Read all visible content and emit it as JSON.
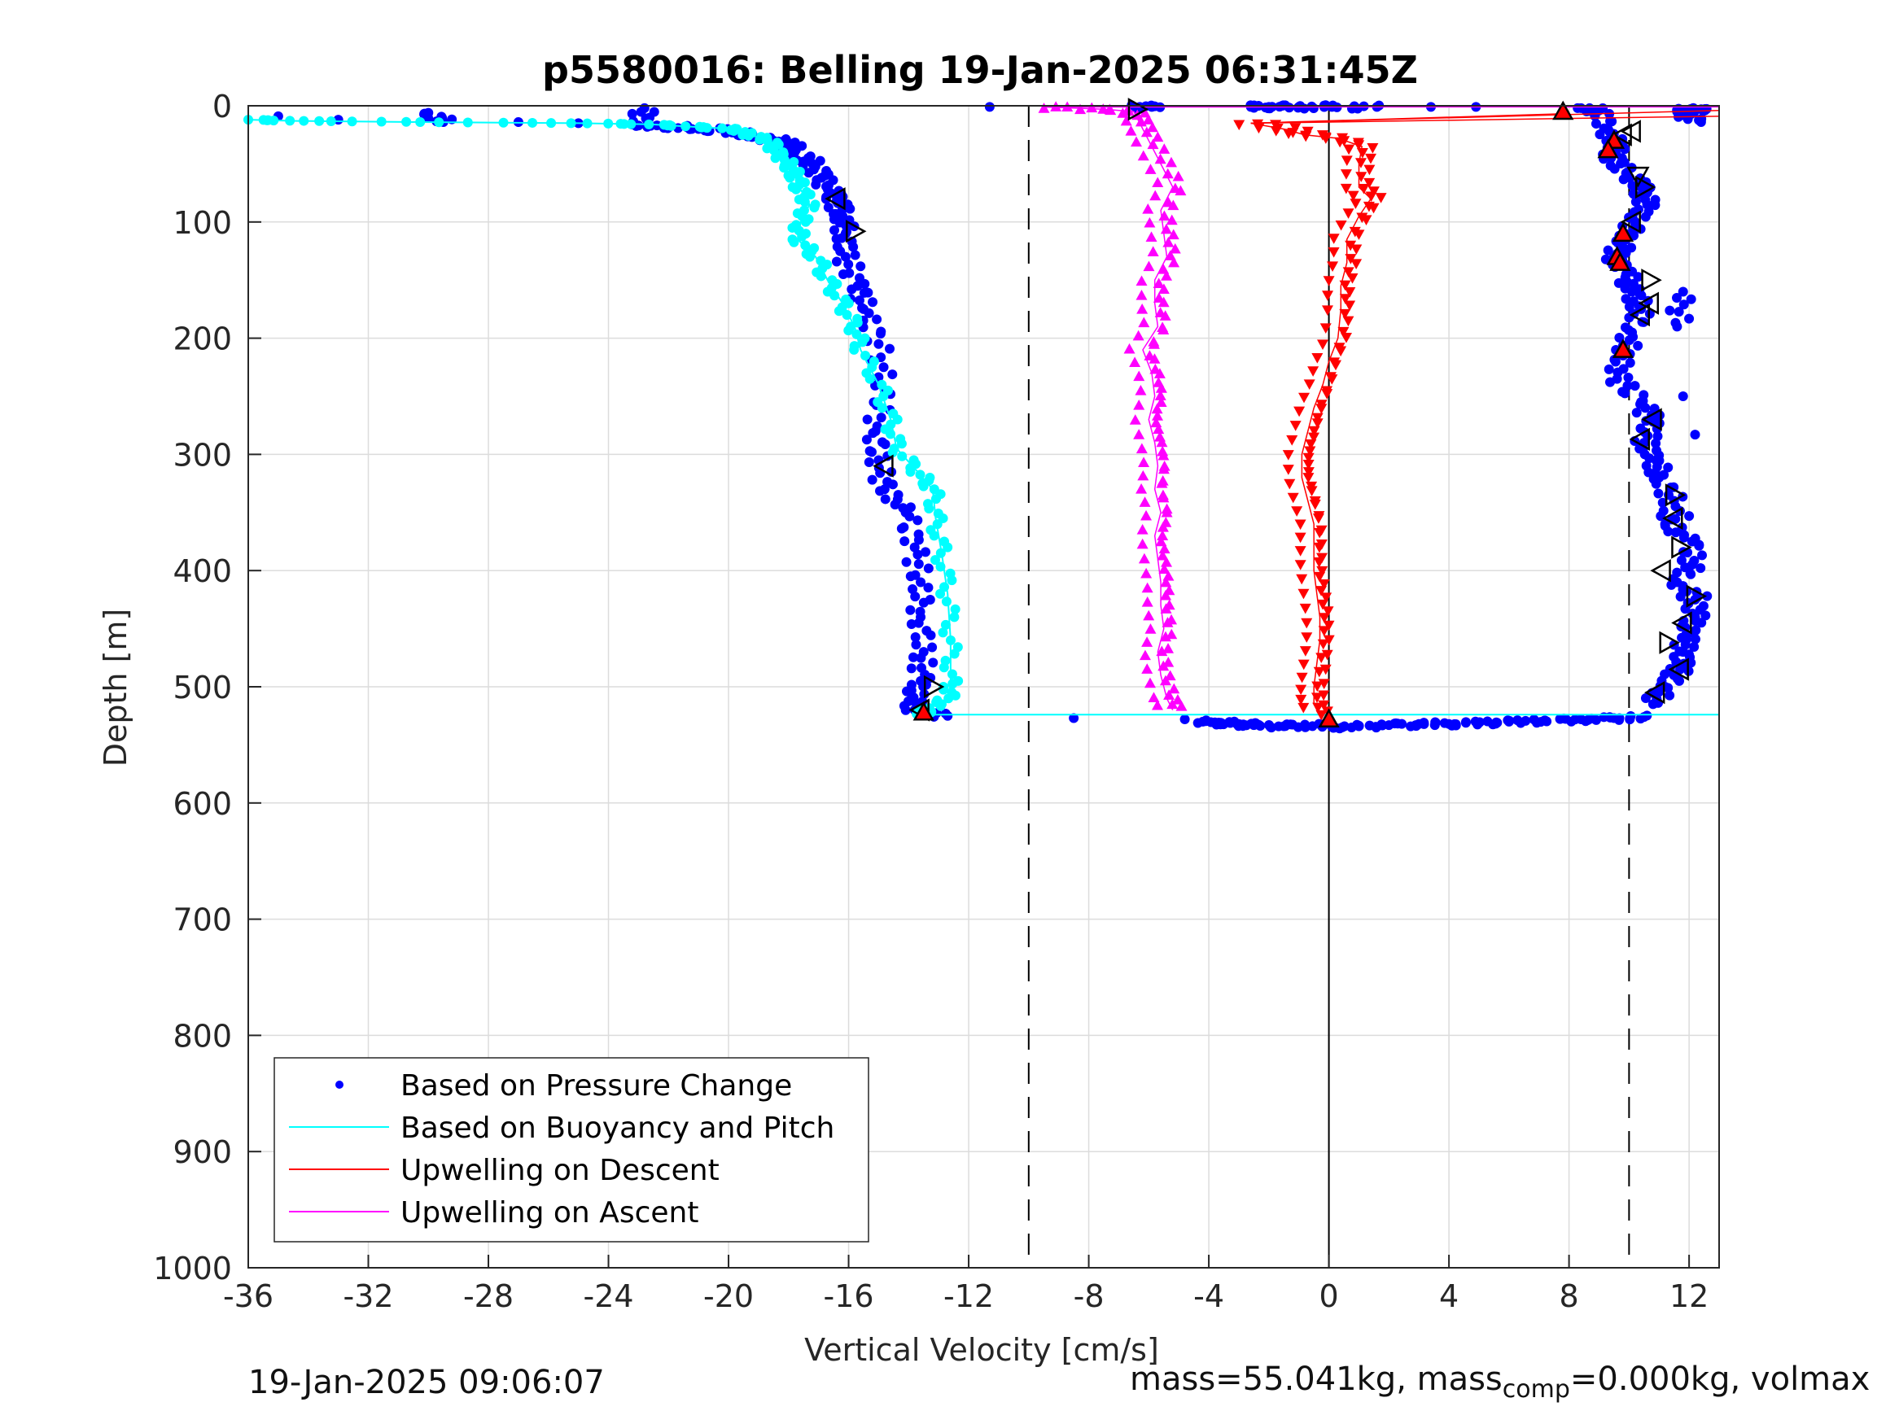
{
  "footer": {
    "timestamp": "19-Jan-2025 09:06:07",
    "mass_prefix": "mass=55.041kg, mass",
    "mass_sub": "comp",
    "mass_suffix": "=0.000kg, volmax"
  },
  "chart_data": {
    "type": "scatter",
    "title": "p5580016: Belling 19-Jan-2025 06:31:45Z",
    "xlabel": "Vertical Velocity [cm/s]",
    "ylabel": "Depth [m]",
    "xlim": [
      -36,
      13
    ],
    "ylim": [
      0,
      1000
    ],
    "y_reversed": true,
    "xticks": [
      -36,
      -32,
      -28,
      -24,
      -20,
      -16,
      -12,
      -8,
      -4,
      0,
      4,
      8,
      12
    ],
    "yticks": [
      0,
      100,
      200,
      300,
      400,
      500,
      600,
      700,
      800,
      900,
      1000
    ],
    "grid": true,
    "reference_lines": [
      {
        "x": -10,
        "style": "dashed"
      },
      {
        "x": 0,
        "style": "solid"
      },
      {
        "x": 10,
        "style": "dashed"
      }
    ],
    "legend": {
      "position": "bottom-left",
      "entries": [
        {
          "label": "Based on Pressure Change",
          "color": "#0000ff",
          "marker": "dot"
        },
        {
          "label": "Based on Buoyancy and Pitch",
          "color": "#00ffff",
          "marker": "line"
        },
        {
          "label": "Upwelling on Descent",
          "color": "#ff0000",
          "marker": "line"
        },
        {
          "label": "Upwelling on Ascent",
          "color": "#ff00ff",
          "marker": "line"
        }
      ]
    },
    "series": [
      {
        "name": "Based on Pressure Change",
        "color": "#0000ff",
        "marker": "dot",
        "points": [
          [
            -35,
            9
          ],
          [
            -33,
            12
          ],
          [
            -30,
            6
          ],
          [
            -29.5,
            14
          ],
          [
            -27,
            14
          ],
          [
            -25,
            15
          ],
          [
            -22.8,
            2
          ],
          [
            -23,
            17
          ],
          [
            -22,
            18
          ],
          [
            -21,
            20
          ],
          [
            -20,
            22
          ],
          [
            -19.5,
            25
          ],
          [
            -18.5,
            30
          ],
          [
            -18,
            32
          ],
          [
            -17.8,
            40
          ],
          [
            -17.2,
            50
          ],
          [
            -16.9,
            62
          ],
          [
            -16.6,
            75
          ],
          [
            -16.4,
            82
          ],
          [
            -16.2,
            95
          ],
          [
            -16.1,
            110
          ],
          [
            -16.1,
            130
          ],
          [
            -15.7,
            155
          ],
          [
            -15.5,
            175
          ],
          [
            -15.0,
            205
          ],
          [
            -14.8,
            245
          ],
          [
            -15.1,
            280
          ],
          [
            -15.0,
            305
          ],
          [
            -14.8,
            330
          ],
          [
            -14.1,
            350
          ],
          [
            -13.8,
            380
          ],
          [
            -13.6,
            410
          ],
          [
            -13.6,
            440
          ],
          [
            -13.5,
            470
          ],
          [
            -13.6,
            495
          ],
          [
            -13.9,
            510
          ],
          [
            -13.8,
            520
          ],
          [
            -12.7,
            525
          ],
          [
            -11.3,
            1
          ],
          [
            -6.3,
            1
          ],
          [
            -5.9,
            1
          ],
          [
            -2.6,
            1
          ],
          [
            -2.0,
            1
          ],
          [
            -1.0,
            1
          ],
          [
            0.1,
            1
          ],
          [
            1.6,
            1
          ],
          [
            3.4,
            1
          ],
          [
            4.9,
            1
          ],
          [
            8.4,
            2
          ],
          [
            9.0,
            4
          ],
          [
            9.3,
            20
          ],
          [
            9.6,
            35
          ],
          [
            9.4,
            45
          ],
          [
            9.9,
            58
          ],
          [
            10.4,
            70
          ],
          [
            10.6,
            85
          ],
          [
            10.2,
            100
          ],
          [
            9.9,
            115
          ],
          [
            9.5,
            130
          ],
          [
            9.9,
            145
          ],
          [
            10.1,
            160
          ],
          [
            10.4,
            175
          ],
          [
            10.1,
            195
          ],
          [
            9.8,
            215
          ],
          [
            9.6,
            235
          ],
          [
            10.4,
            255
          ],
          [
            10.8,
            272
          ],
          [
            10.5,
            290
          ],
          [
            10.9,
            305
          ],
          [
            11.0,
            320
          ],
          [
            11.5,
            340
          ],
          [
            11.2,
            360
          ],
          [
            12.1,
            375
          ],
          [
            12.1,
            395
          ],
          [
            11.6,
            410
          ],
          [
            12.2,
            425
          ],
          [
            12.2,
            440
          ],
          [
            11.9,
            455
          ],
          [
            11.8,
            470
          ],
          [
            11.7,
            485
          ],
          [
            11.2,
            500
          ],
          [
            10.8,
            515
          ],
          [
            12.0,
            5
          ],
          [
            12.4,
            3
          ],
          [
            11.6,
            5
          ],
          [
            12.4,
            14
          ],
          [
            12.0,
            353
          ],
          [
            12.6,
            422
          ],
          [
            12.2,
            283
          ],
          [
            11.8,
            160
          ],
          [
            11.6,
            190
          ],
          [
            11.8,
            250
          ],
          [
            -4.2,
            530
          ],
          [
            -3.6,
            531
          ],
          [
            -3.0,
            532
          ],
          [
            -2.5,
            533
          ],
          [
            -1.5,
            534
          ],
          [
            -0.8,
            533
          ],
          [
            0.2,
            535
          ],
          [
            1.0,
            534
          ],
          [
            2.0,
            533
          ],
          [
            3.0,
            532
          ],
          [
            4.0,
            532
          ],
          [
            5.0,
            531
          ],
          [
            6.0,
            530
          ],
          [
            7.2,
            529
          ],
          [
            8.4,
            528
          ],
          [
            9.5,
            527
          ],
          [
            10.5,
            526
          ],
          [
            -8.5,
            527
          ],
          [
            -4.8,
            528
          ]
        ]
      },
      {
        "name": "Based on Buoyancy and Pitch",
        "color": "#00ffff",
        "marker": "line-dots",
        "points": [
          [
            -36,
            12
          ],
          [
            -34.4,
            13
          ],
          [
            -30.3,
            14
          ],
          [
            -25,
            15
          ],
          [
            -22.6,
            16
          ],
          [
            -21.2,
            18
          ],
          [
            -19.8,
            20
          ],
          [
            -19.3,
            25
          ],
          [
            -18.6,
            30
          ],
          [
            -18.4,
            40
          ],
          [
            -18.0,
            50
          ],
          [
            -17.8,
            60
          ],
          [
            -17.6,
            72
          ],
          [
            -17.3,
            85
          ],
          [
            -17.6,
            100
          ],
          [
            -17.7,
            115
          ],
          [
            -17.1,
            130
          ],
          [
            -16.7,
            150
          ],
          [
            -16.2,
            170
          ],
          [
            -15.8,
            190
          ],
          [
            -15.6,
            210
          ],
          [
            -15.0,
            240
          ],
          [
            -14.6,
            270
          ],
          [
            -14.4,
            295
          ],
          [
            -13.7,
            315
          ],
          [
            -13.2,
            330
          ],
          [
            -13.1,
            355
          ],
          [
            -12.9,
            385
          ],
          [
            -12.7,
            420
          ],
          [
            -12.6,
            460
          ],
          [
            -12.6,
            495
          ],
          [
            -12.7,
            510
          ],
          [
            -13.4,
            520
          ],
          [
            -13.5,
            524
          ],
          [
            13,
            524
          ]
        ]
      },
      {
        "name": "Upwelling on Descent",
        "color": "#ff0000",
        "marker": "triangle-down",
        "points": [
          [
            -2.6,
            15
          ],
          [
            -1.5,
            20
          ],
          [
            -0.8,
            25
          ],
          [
            0.3,
            28
          ],
          [
            1.1,
            35
          ],
          [
            1.0,
            50
          ],
          [
            1.0,
            70
          ],
          [
            1.4,
            80
          ],
          [
            1.0,
            95
          ],
          [
            0.6,
            115
          ],
          [
            0.6,
            135
          ],
          [
            0.4,
            155
          ],
          [
            0.4,
            175
          ],
          [
            0.3,
            200
          ],
          [
            0.0,
            220
          ],
          [
            -0.2,
            240
          ],
          [
            -0.5,
            260
          ],
          [
            -0.7,
            280
          ],
          [
            -0.9,
            300
          ],
          [
            -0.9,
            320
          ],
          [
            -0.7,
            340
          ],
          [
            -0.5,
            360
          ],
          [
            -0.5,
            380
          ],
          [
            -0.5,
            400
          ],
          [
            -0.4,
            420
          ],
          [
            -0.3,
            440
          ],
          [
            -0.3,
            460
          ],
          [
            -0.4,
            480
          ],
          [
            -0.5,
            500
          ],
          [
            -0.5,
            515
          ],
          [
            -0.3,
            525
          ],
          [
            7.6,
            7
          ],
          [
            13,
            4
          ],
          [
            13,
            9
          ]
        ]
      },
      {
        "name": "Upwelling on Ascent",
        "color": "#ff00ff",
        "marker": "triangle-up",
        "points": [
          [
            -9.5,
            1
          ],
          [
            -7.5,
            3
          ],
          [
            -6.5,
            5
          ],
          [
            -6.3,
            15
          ],
          [
            -6.0,
            30
          ],
          [
            -5.6,
            50
          ],
          [
            -5.2,
            70
          ],
          [
            -5.6,
            90
          ],
          [
            -5.5,
            110
          ],
          [
            -5.4,
            130
          ],
          [
            -5.8,
            150
          ],
          [
            -5.8,
            170
          ],
          [
            -5.7,
            190
          ],
          [
            -6.2,
            210
          ],
          [
            -5.9,
            230
          ],
          [
            -5.8,
            250
          ],
          [
            -6.0,
            270
          ],
          [
            -5.8,
            290
          ],
          [
            -5.7,
            310
          ],
          [
            -5.8,
            330
          ],
          [
            -5.6,
            350
          ],
          [
            -5.8,
            370
          ],
          [
            -5.7,
            390
          ],
          [
            -5.6,
            410
          ],
          [
            -5.6,
            430
          ],
          [
            -5.5,
            450
          ],
          [
            -5.7,
            470
          ],
          [
            -5.6,
            490
          ],
          [
            -5.4,
            510
          ],
          [
            -5.2,
            520
          ],
          [
            0.0,
            1
          ],
          [
            13,
            1
          ]
        ]
      },
      {
        "name": "",
        "color": "#000000",
        "marker": "outline-triangles",
        "points": [
          [
            -6.4,
            3
          ],
          [
            -16.4,
            80
          ],
          [
            -15.8,
            108
          ],
          [
            -14.8,
            310
          ],
          [
            -13.2,
            500
          ],
          [
            -13.6,
            520
          ],
          [
            9.8,
            25
          ],
          [
            10.1,
            22
          ],
          [
            10.3,
            60
          ],
          [
            10.5,
            70
          ],
          [
            10.1,
            100
          ],
          [
            10.7,
            150
          ],
          [
            10.7,
            170
          ],
          [
            10.4,
            180
          ],
          [
            10.8,
            270
          ],
          [
            10.4,
            287
          ],
          [
            11.5,
            335
          ],
          [
            11.5,
            355
          ],
          [
            11.7,
            380
          ],
          [
            11.1,
            400
          ],
          [
            12.2,
            422
          ],
          [
            11.8,
            445
          ],
          [
            11.3,
            462
          ],
          [
            11.7,
            485
          ],
          [
            10.9,
            505
          ]
        ]
      },
      {
        "name": "",
        "color": "#ff0000",
        "marker": "filled-triangles",
        "points": [
          [
            7.8,
            5
          ],
          [
            9.5,
            30
          ],
          [
            9.3,
            38
          ],
          [
            9.8,
            110
          ],
          [
            9.6,
            130
          ],
          [
            9.7,
            135
          ],
          [
            9.8,
            210
          ],
          [
            -13.5,
            522
          ],
          [
            0.0,
            528
          ]
        ]
      }
    ]
  }
}
